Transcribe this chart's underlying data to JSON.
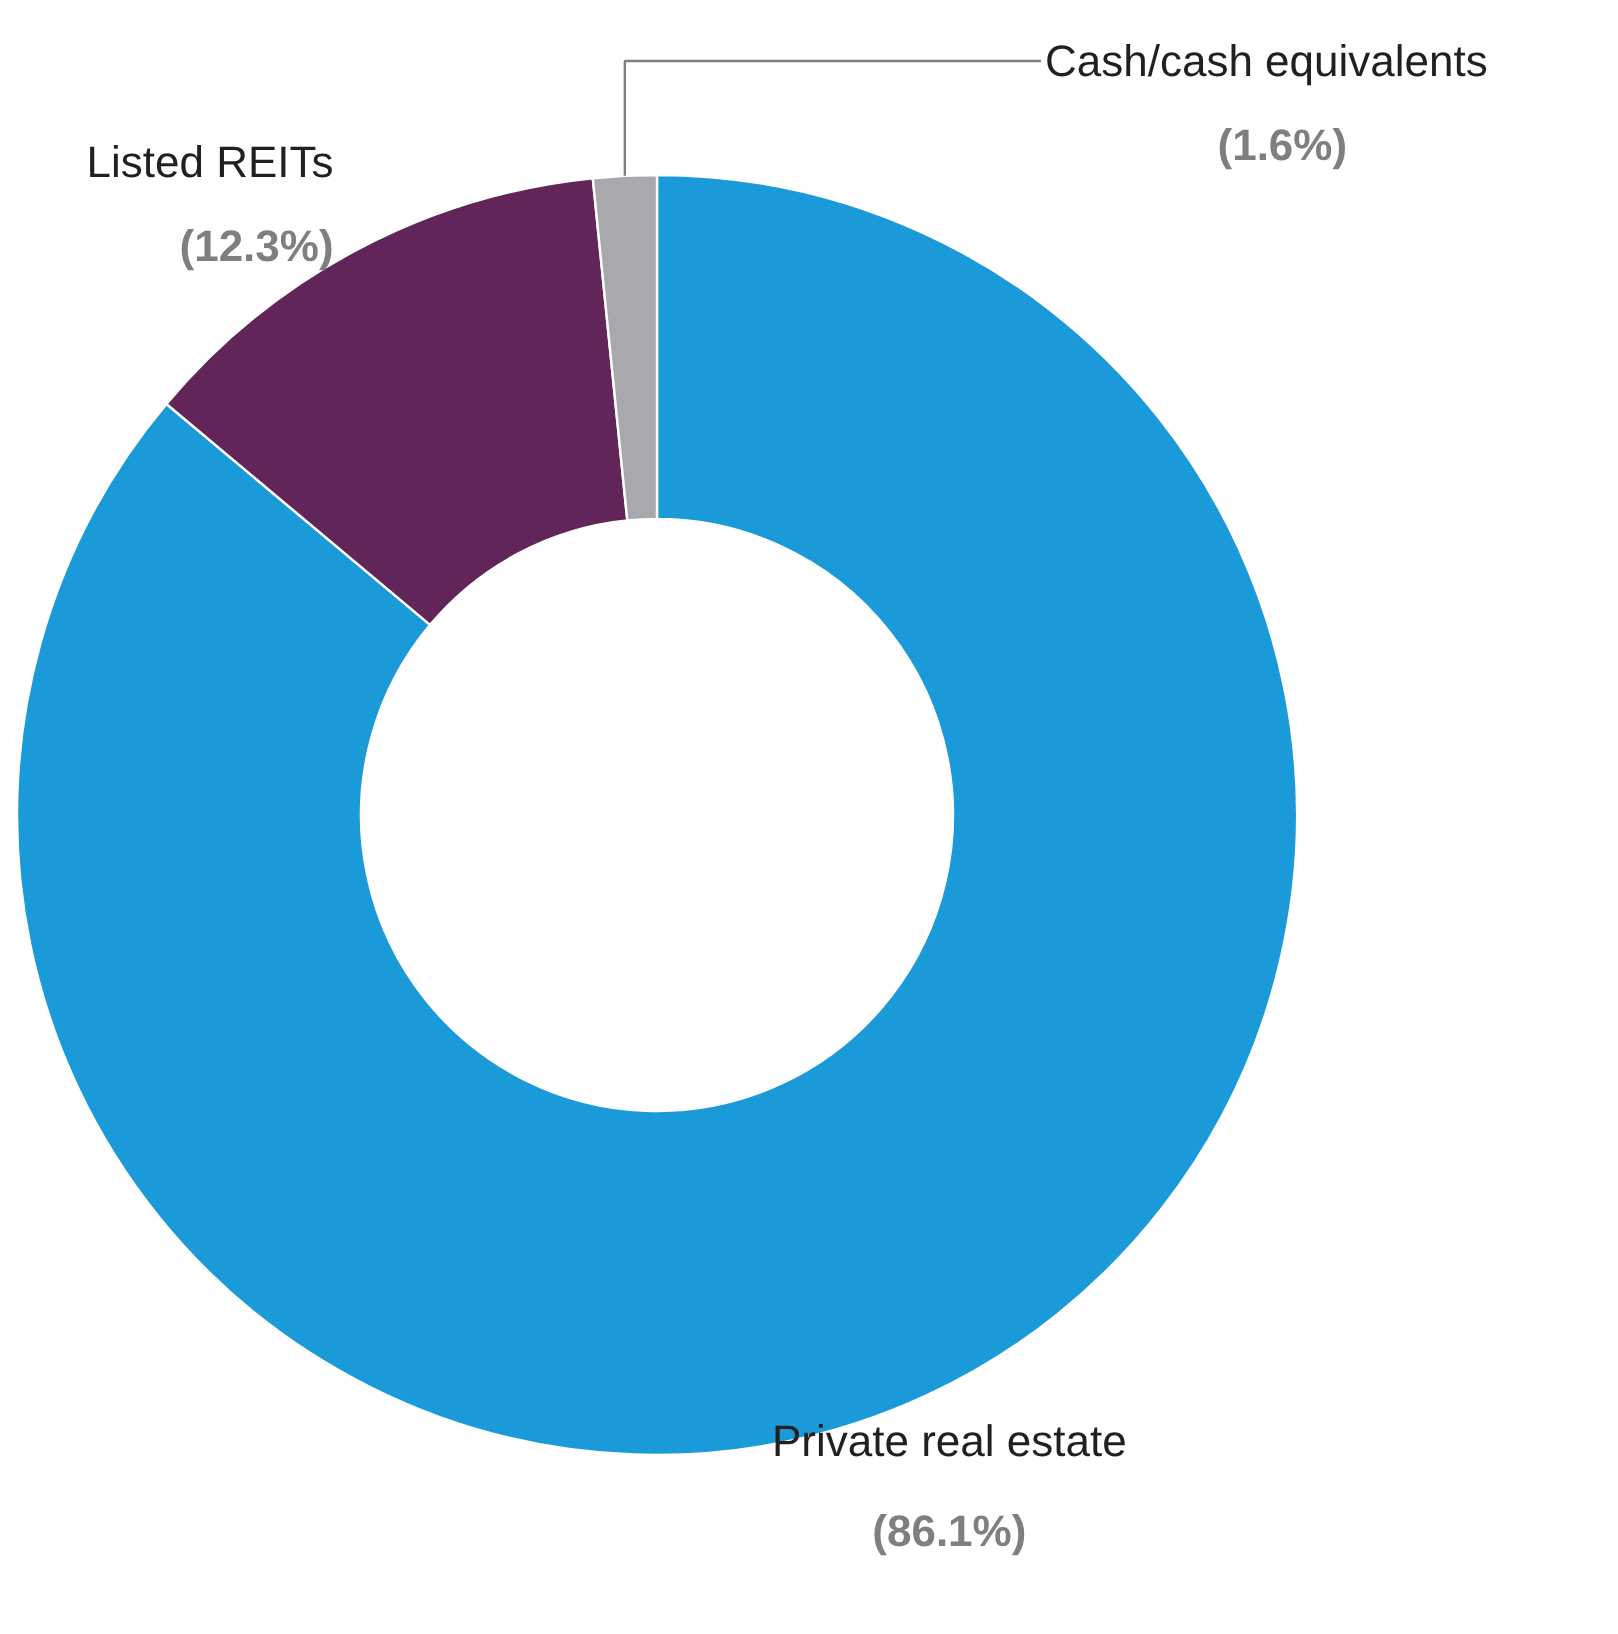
{
  "chart_data": {
    "type": "donut",
    "categories": [
      "Private real estate",
      "Listed REITs",
      "Cash/cash equivalents"
    ],
    "values": [
      86.1,
      12.3,
      1.6
    ],
    "colors": [
      "#1a9ad9",
      "#62255a",
      "#a7a9ac"
    ],
    "value_labels": [
      "(86.1%)",
      "(12.3%)",
      "(1.6%)"
    ]
  }
}
